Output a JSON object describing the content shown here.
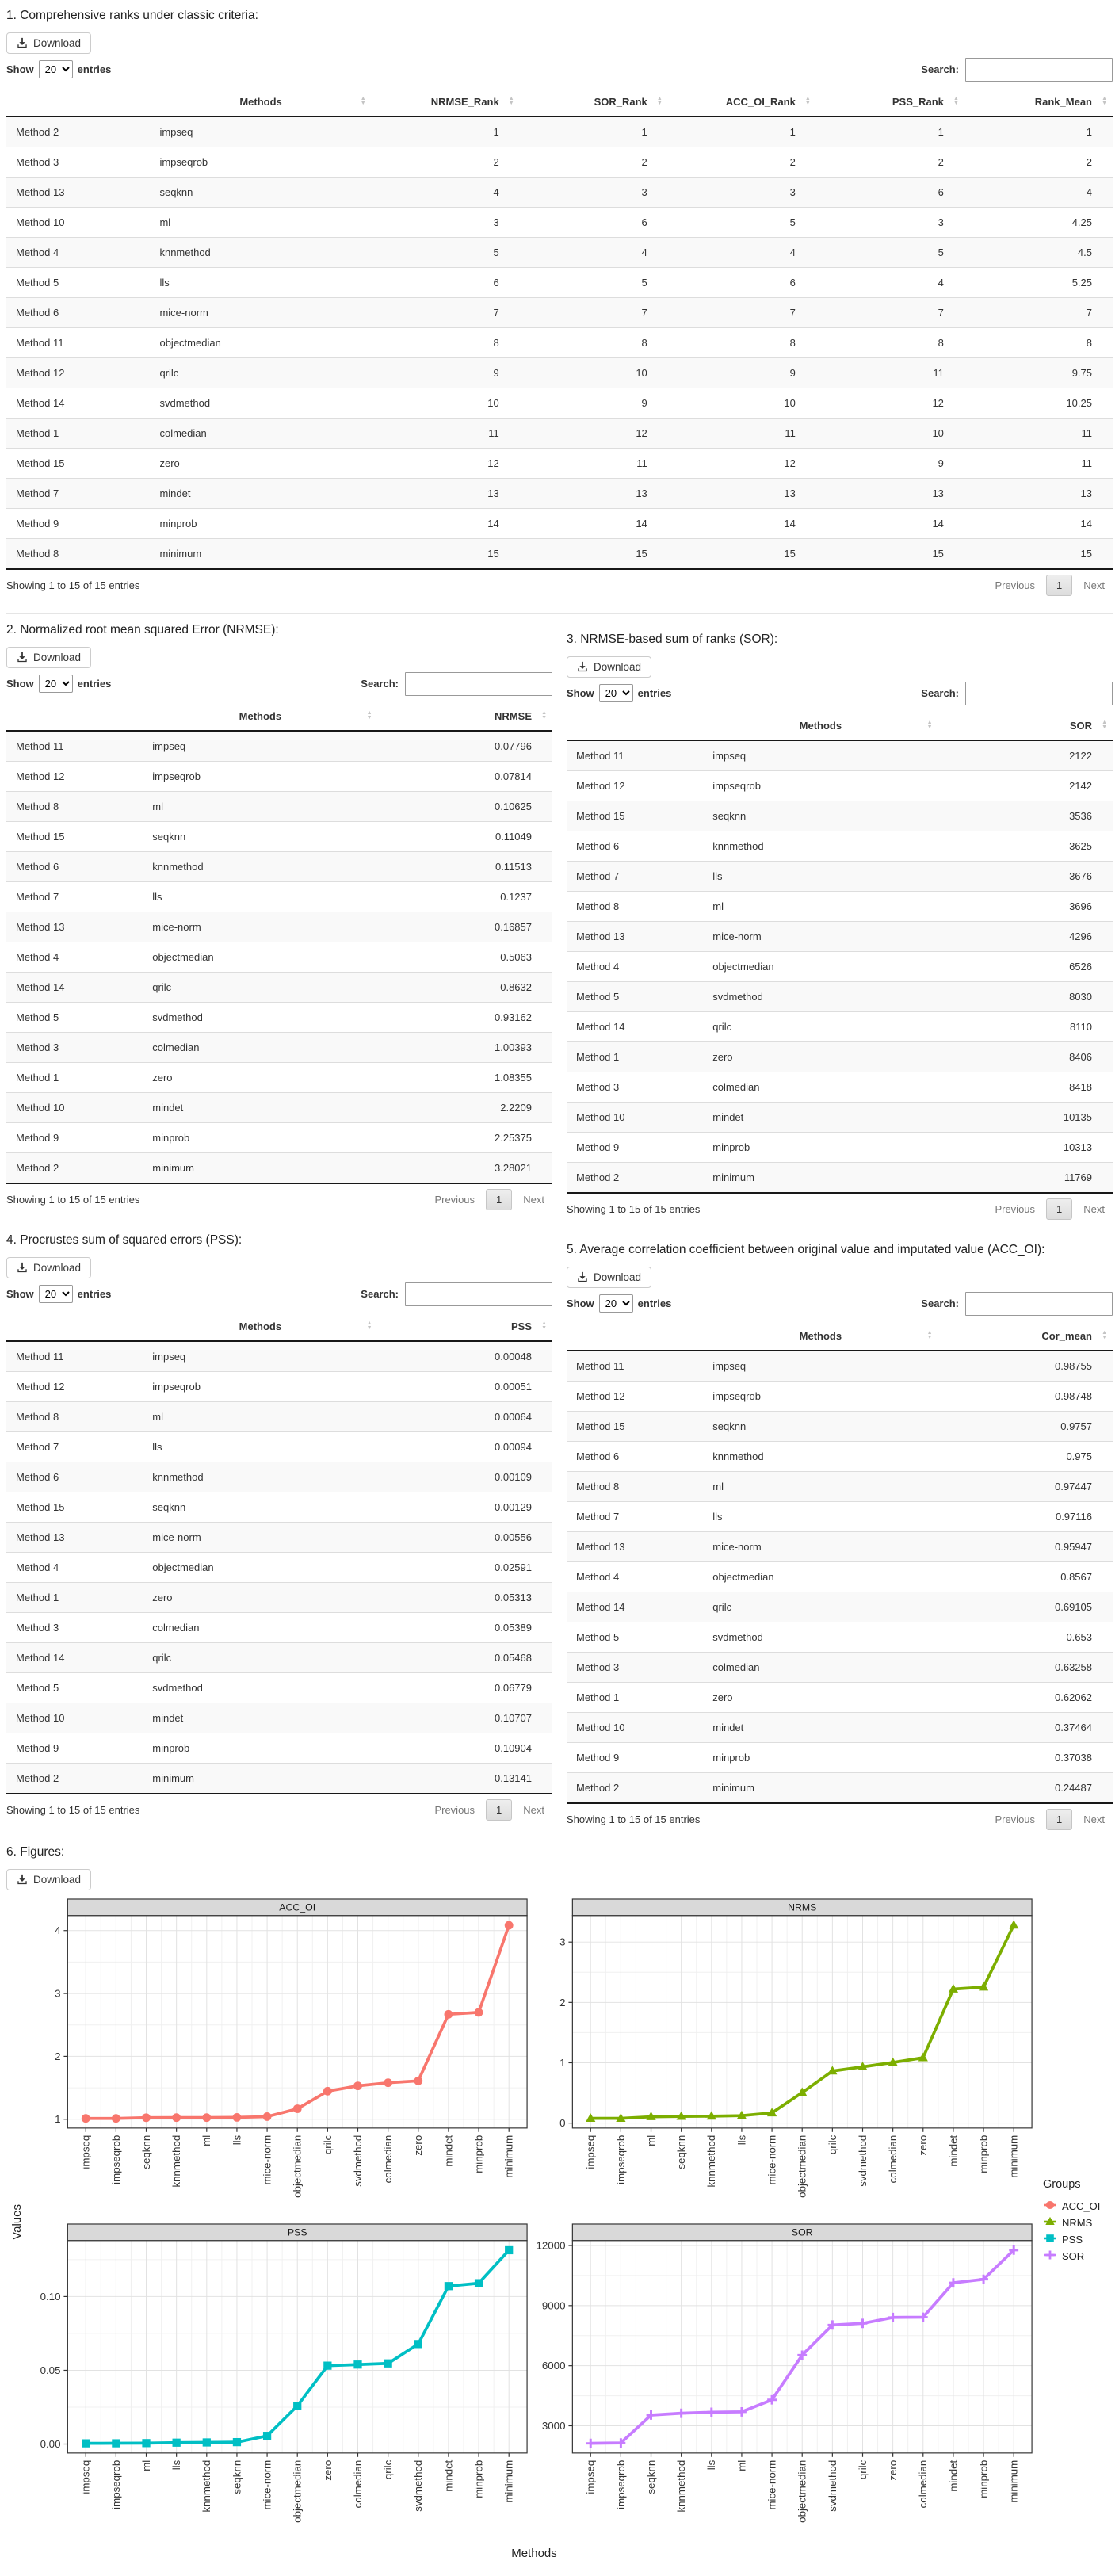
{
  "controls": {
    "download_label": "Download",
    "show_label": "Show",
    "page_size": "20",
    "entries_label": "entries",
    "search_label": "Search:",
    "search_value": "",
    "showing_text": "Showing 1 to 15 of 15 entries",
    "previous_label": "Previous",
    "page_number": "1",
    "next_label": "Next"
  },
  "sections": {
    "s1": {
      "title": "1. Comprehensive ranks under classic criteria:",
      "columns": [
        "",
        "Methods",
        "NRMSE_Rank",
        "SOR_Rank",
        "ACC_OI_Rank",
        "PSS_Rank",
        "Rank_Mean"
      ],
      "rows": [
        [
          "Method 2",
          "impseq",
          "1",
          "1",
          "1",
          "1",
          "1"
        ],
        [
          "Method 3",
          "impseqrob",
          "2",
          "2",
          "2",
          "2",
          "2"
        ],
        [
          "Method 13",
          "seqknn",
          "4",
          "3",
          "3",
          "6",
          "4"
        ],
        [
          "Method 10",
          "ml",
          "3",
          "6",
          "5",
          "3",
          "4.25"
        ],
        [
          "Method 4",
          "knnmethod",
          "5",
          "4",
          "4",
          "5",
          "4.5"
        ],
        [
          "Method 5",
          "lls",
          "6",
          "5",
          "6",
          "4",
          "5.25"
        ],
        [
          "Method 6",
          "mice-norm",
          "7",
          "7",
          "7",
          "7",
          "7"
        ],
        [
          "Method 11",
          "objectmedian",
          "8",
          "8",
          "8",
          "8",
          "8"
        ],
        [
          "Method 12",
          "qrilc",
          "9",
          "10",
          "9",
          "11",
          "9.75"
        ],
        [
          "Method 14",
          "svdmethod",
          "10",
          "9",
          "10",
          "12",
          "10.25"
        ],
        [
          "Method 1",
          "colmedian",
          "11",
          "12",
          "11",
          "10",
          "11"
        ],
        [
          "Method 15",
          "zero",
          "12",
          "11",
          "12",
          "9",
          "11"
        ],
        [
          "Method 7",
          "mindet",
          "13",
          "13",
          "13",
          "13",
          "13"
        ],
        [
          "Method 9",
          "minprob",
          "14",
          "14",
          "14",
          "14",
          "14"
        ],
        [
          "Method 8",
          "minimum",
          "15",
          "15",
          "15",
          "15",
          "15"
        ]
      ]
    },
    "s2": {
      "title": "2. Normalized root mean squared Error (NRMSE):",
      "columns": [
        "",
        "Methods",
        "NRMSE"
      ],
      "rows": [
        [
          "Method 11",
          "impseq",
          "0.07796"
        ],
        [
          "Method 12",
          "impseqrob",
          "0.07814"
        ],
        [
          "Method 8",
          "ml",
          "0.10625"
        ],
        [
          "Method 15",
          "seqknn",
          "0.11049"
        ],
        [
          "Method 6",
          "knnmethod",
          "0.11513"
        ],
        [
          "Method 7",
          "lls",
          "0.1237"
        ],
        [
          "Method 13",
          "mice-norm",
          "0.16857"
        ],
        [
          "Method 4",
          "objectmedian",
          "0.5063"
        ],
        [
          "Method 14",
          "qrilc",
          "0.8632"
        ],
        [
          "Method 5",
          "svdmethod",
          "0.93162"
        ],
        [
          "Method 3",
          "colmedian",
          "1.00393"
        ],
        [
          "Method 1",
          "zero",
          "1.08355"
        ],
        [
          "Method 10",
          "mindet",
          "2.2209"
        ],
        [
          "Method 9",
          "minprob",
          "2.25375"
        ],
        [
          "Method 2",
          "minimum",
          "3.28021"
        ]
      ]
    },
    "s3": {
      "title": "3. NRMSE-based sum of ranks (SOR):",
      "columns": [
        "",
        "Methods",
        "SOR"
      ],
      "rows": [
        [
          "Method 11",
          "impseq",
          "2122"
        ],
        [
          "Method 12",
          "impseqrob",
          "2142"
        ],
        [
          "Method 15",
          "seqknn",
          "3536"
        ],
        [
          "Method 6",
          "knnmethod",
          "3625"
        ],
        [
          "Method 7",
          "lls",
          "3676"
        ],
        [
          "Method 8",
          "ml",
          "3696"
        ],
        [
          "Method 13",
          "mice-norm",
          "4296"
        ],
        [
          "Method 4",
          "objectmedian",
          "6526"
        ],
        [
          "Method 5",
          "svdmethod",
          "8030"
        ],
        [
          "Method 14",
          "qrilc",
          "8110"
        ],
        [
          "Method 1",
          "zero",
          "8406"
        ],
        [
          "Method 3",
          "colmedian",
          "8418"
        ],
        [
          "Method 10",
          "mindet",
          "10135"
        ],
        [
          "Method 9",
          "minprob",
          "10313"
        ],
        [
          "Method 2",
          "minimum",
          "11769"
        ]
      ]
    },
    "s4": {
      "title": "4. Procrustes sum of squared errors (PSS):",
      "columns": [
        "",
        "Methods",
        "PSS"
      ],
      "rows": [
        [
          "Method 11",
          "impseq",
          "0.00048"
        ],
        [
          "Method 12",
          "impseqrob",
          "0.00051"
        ],
        [
          "Method 8",
          "ml",
          "0.00064"
        ],
        [
          "Method 7",
          "lls",
          "0.00094"
        ],
        [
          "Method 6",
          "knnmethod",
          "0.00109"
        ],
        [
          "Method 15",
          "seqknn",
          "0.00129"
        ],
        [
          "Method 13",
          "mice-norm",
          "0.00556"
        ],
        [
          "Method 4",
          "objectmedian",
          "0.02591"
        ],
        [
          "Method 1",
          "zero",
          "0.05313"
        ],
        [
          "Method 3",
          "colmedian",
          "0.05389"
        ],
        [
          "Method 14",
          "qrilc",
          "0.05468"
        ],
        [
          "Method 5",
          "svdmethod",
          "0.06779"
        ],
        [
          "Method 10",
          "mindet",
          "0.10707"
        ],
        [
          "Method 9",
          "minprob",
          "0.10904"
        ],
        [
          "Method 2",
          "minimum",
          "0.13141"
        ]
      ]
    },
    "s5": {
      "title": "5. Average correlation coefficient between original value and imputated value (ACC_OI):",
      "columns": [
        "",
        "Methods",
        "Cor_mean"
      ],
      "rows": [
        [
          "Method 11",
          "impseq",
          "0.98755"
        ],
        [
          "Method 12",
          "impseqrob",
          "0.98748"
        ],
        [
          "Method 15",
          "seqknn",
          "0.9757"
        ],
        [
          "Method 6",
          "knnmethod",
          "0.975"
        ],
        [
          "Method 8",
          "ml",
          "0.97447"
        ],
        [
          "Method 7",
          "lls",
          "0.97116"
        ],
        [
          "Method 13",
          "mice-norm",
          "0.95947"
        ],
        [
          "Method 4",
          "objectmedian",
          "0.8567"
        ],
        [
          "Method 14",
          "qrilc",
          "0.69105"
        ],
        [
          "Method 5",
          "svdmethod",
          "0.653"
        ],
        [
          "Method 3",
          "colmedian",
          "0.63258"
        ],
        [
          "Method 1",
          "zero",
          "0.62062"
        ],
        [
          "Method 10",
          "mindet",
          "0.37464"
        ],
        [
          "Method 9",
          "minprob",
          "0.37038"
        ],
        [
          "Method 2",
          "minimum",
          "0.24487"
        ]
      ]
    },
    "s6": {
      "title": "6. Figures:"
    }
  },
  "figure": {
    "y_axis_title": "Values",
    "x_axis_title": "Methods",
    "legend": {
      "title": "Groups",
      "items": [
        {
          "label": "ACC_OI",
          "color": "#F8766D",
          "marker": "circle"
        },
        {
          "label": "NRMS",
          "color": "#7CAE00",
          "marker": "triangle"
        },
        {
          "label": "PSS",
          "color": "#00BFC4",
          "marker": "square"
        },
        {
          "label": "SOR",
          "color": "#C77CFF",
          "marker": "plus"
        }
      ]
    }
  },
  "chart_data": [
    {
      "type": "line",
      "title": "ACC_OI",
      "color": "#F8766D",
      "marker": "circle",
      "categories": [
        "impseq",
        "impseqrob",
        "seqknn",
        "knnmethod",
        "ml",
        "lls",
        "mice-norm",
        "objectmedian",
        "qrilc",
        "svdmethod",
        "colmedian",
        "zero",
        "mindet",
        "minprob",
        "minimum"
      ],
      "values": [
        1.013,
        1.013,
        1.025,
        1.026,
        1.026,
        1.03,
        1.042,
        1.167,
        1.447,
        1.531,
        1.581,
        1.611,
        2.669,
        2.7,
        4.084
      ],
      "y_ticks": [
        1,
        2,
        3,
        4
      ],
      "y_tick_labels": [
        "1",
        "2",
        "3",
        "4"
      ],
      "ylim": [
        0.86,
        4.24
      ],
      "grid": true,
      "xlabel": "Methods",
      "ylabel": "Values"
    },
    {
      "type": "line",
      "title": "NRMS",
      "color": "#7CAE00",
      "marker": "triangle",
      "categories": [
        "impseq",
        "impseqrob",
        "ml",
        "seqknn",
        "knnmethod",
        "lls",
        "mice-norm",
        "objectmedian",
        "qrilc",
        "svdmethod",
        "colmedian",
        "zero",
        "mindet",
        "minprob",
        "minimum"
      ],
      "values": [
        0.07796,
        0.07814,
        0.10625,
        0.11049,
        0.11513,
        0.1237,
        0.16857,
        0.5063,
        0.8632,
        0.93162,
        1.00393,
        1.08355,
        2.2209,
        2.25375,
        3.28021
      ],
      "y_ticks": [
        0,
        1,
        2,
        3
      ],
      "y_tick_labels": [
        "0",
        "1",
        "2",
        "3"
      ],
      "ylim": [
        -0.082,
        3.44
      ],
      "grid": true,
      "xlabel": "Methods",
      "ylabel": "Values"
    },
    {
      "type": "line",
      "title": "PSS",
      "color": "#00BFC4",
      "marker": "square",
      "categories": [
        "impseq",
        "impseqrob",
        "ml",
        "lls",
        "knnmethod",
        "seqknn",
        "mice-norm",
        "objectmedian",
        "zero",
        "colmedian",
        "qrilc",
        "svdmethod",
        "mindet",
        "minprob",
        "minimum"
      ],
      "values": [
        0.00048,
        0.00051,
        0.00064,
        0.00094,
        0.00109,
        0.00129,
        0.00556,
        0.02591,
        0.05313,
        0.05389,
        0.05468,
        0.06779,
        0.10707,
        0.10904,
        0.13141
      ],
      "y_ticks": [
        0,
        0.05,
        0.1
      ],
      "y_tick_labels": [
        "0.00",
        "0.05",
        "0.10"
      ],
      "ylim": [
        -0.0061,
        0.138
      ],
      "grid": true,
      "xlabel": "Methods",
      "ylabel": "Values"
    },
    {
      "type": "line",
      "title": "SOR",
      "color": "#C77CFF",
      "marker": "plus",
      "categories": [
        "impseq",
        "impseqrob",
        "seqknn",
        "knnmethod",
        "lls",
        "ml",
        "mice-norm",
        "objectmedian",
        "svdmethod",
        "qrilc",
        "zero",
        "colmedian",
        "mindet",
        "minprob",
        "minimum"
      ],
      "values": [
        2122,
        2142,
        3536,
        3625,
        3676,
        3696,
        4296,
        6526,
        8030,
        8110,
        8406,
        8418,
        10135,
        10313,
        11769
      ],
      "y_ticks": [
        3000,
        6000,
        9000,
        12000
      ],
      "y_tick_labels": [
        "3000",
        "6000",
        "9000",
        "12000"
      ],
      "ylim": [
        1640,
        12250
      ],
      "grid": true,
      "xlabel": "Methods",
      "ylabel": "Values"
    }
  ]
}
